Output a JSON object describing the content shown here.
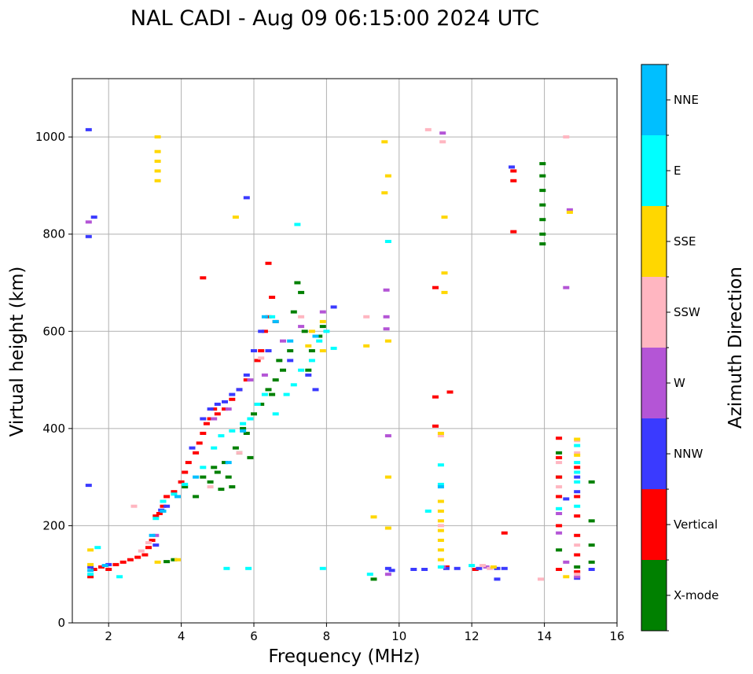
{
  "chart_data": {
    "type": "scatter",
    "title": "NAL CADI - Aug 09 06:15:00 2024 UTC",
    "xlabel": "Frequency (MHz)",
    "ylabel": "Virtual height (km)",
    "xlim": [
      1,
      16
    ],
    "ylim": [
      0,
      1120
    ],
    "xticks": [
      2,
      4,
      6,
      8,
      10,
      12,
      14,
      16
    ],
    "yticks": [
      0,
      200,
      400,
      600,
      800,
      1000
    ],
    "xtick_labels": [
      "2",
      "4",
      "6",
      "8",
      "10",
      "12",
      "14",
      "16"
    ],
    "ytick_labels": [
      "0",
      "200",
      "400",
      "600",
      "800",
      "1000"
    ],
    "grid": true,
    "colorbar": {
      "label": "Azimuth Direction",
      "categories": [
        "X-mode",
        "Vertical",
        "NNW",
        "W",
        "SSW",
        "SSE",
        "E",
        "NNE"
      ],
      "colors": [
        "#008000",
        "#ff0000",
        "#3a3aff",
        "#b455d6",
        "#ffb6c1",
        "#ffd700",
        "#00ffff",
        "#00bfff"
      ]
    },
    "series": [
      {
        "name": "X-mode",
        "points": [
          [
            3.6,
            126
          ],
          [
            3.8,
            130
          ],
          [
            4.1,
            280
          ],
          [
            4.4,
            260
          ],
          [
            4.6,
            300
          ],
          [
            4.8,
            290
          ],
          [
            4.9,
            320
          ],
          [
            5.0,
            310
          ],
          [
            5.1,
            275
          ],
          [
            5.2,
            330
          ],
          [
            5.3,
            300
          ],
          [
            5.4,
            280
          ],
          [
            5.6,
            350
          ],
          [
            5.8,
            390
          ],
          [
            5.9,
            340
          ],
          [
            6.0,
            430
          ],
          [
            6.2,
            450
          ],
          [
            6.4,
            480
          ],
          [
            6.6,
            500
          ],
          [
            6.8,
            520
          ],
          [
            7.0,
            560
          ],
          [
            7.1,
            640
          ],
          [
            7.2,
            700
          ],
          [
            7.3,
            680
          ],
          [
            7.4,
            600
          ],
          [
            7.5,
            520
          ],
          [
            7.6,
            560
          ],
          [
            7.8,
            590
          ],
          [
            7.9,
            610
          ],
          [
            6.7,
            540
          ],
          [
            6.5,
            470
          ],
          [
            5.7,
            400
          ],
          [
            5.5,
            360
          ],
          [
            9.3,
            90
          ],
          [
            13.95,
            780
          ],
          [
            13.95,
            800
          ],
          [
            13.95,
            830
          ],
          [
            13.95,
            860
          ],
          [
            13.95,
            890
          ],
          [
            13.95,
            920
          ],
          [
            13.95,
            945
          ],
          [
            15.3,
            290
          ],
          [
            15.3,
            210
          ],
          [
            15.3,
            160
          ],
          [
            15.3,
            125
          ],
          [
            14.4,
            350
          ],
          [
            14.4,
            300
          ],
          [
            14.4,
            150
          ],
          [
            14.9,
            115
          ]
        ]
      },
      {
        "name": "Vertical",
        "points": [
          [
            1.5,
            95
          ],
          [
            1.6,
            110
          ],
          [
            1.8,
            115
          ],
          [
            2.0,
            110
          ],
          [
            2.2,
            120
          ],
          [
            2.4,
            125
          ],
          [
            2.6,
            130
          ],
          [
            2.8,
            135
          ],
          [
            3.0,
            140
          ],
          [
            3.1,
            155
          ],
          [
            3.2,
            170
          ],
          [
            3.3,
            220
          ],
          [
            3.4,
            225
          ],
          [
            3.5,
            240
          ],
          [
            3.6,
            260
          ],
          [
            3.8,
            270
          ],
          [
            4.0,
            290
          ],
          [
            4.1,
            310
          ],
          [
            4.2,
            330
          ],
          [
            4.4,
            350
          ],
          [
            4.5,
            370
          ],
          [
            4.6,
            390
          ],
          [
            4.7,
            410
          ],
          [
            4.8,
            420
          ],
          [
            4.9,
            440
          ],
          [
            5.0,
            430
          ],
          [
            5.2,
            440
          ],
          [
            5.4,
            460
          ],
          [
            5.6,
            480
          ],
          [
            5.8,
            500
          ],
          [
            6.1,
            540
          ],
          [
            6.2,
            560
          ],
          [
            6.3,
            600
          ],
          [
            6.4,
            630
          ],
          [
            6.4,
            740
          ],
          [
            6.6,
            620
          ],
          [
            6.5,
            670
          ],
          [
            4.6,
            710
          ],
          [
            11.0,
            690
          ],
          [
            11.0,
            465
          ],
          [
            11.0,
            405
          ],
          [
            11.4,
            475
          ],
          [
            11.3,
            115
          ],
          [
            12.1,
            110
          ],
          [
            12.9,
            185
          ],
          [
            13.15,
            805
          ],
          [
            13.15,
            910
          ],
          [
            13.15,
            930
          ],
          [
            14.4,
            380
          ],
          [
            14.4,
            340
          ],
          [
            14.4,
            300
          ],
          [
            14.4,
            260
          ],
          [
            14.4,
            200
          ],
          [
            14.4,
            110
          ],
          [
            14.9,
            260
          ],
          [
            14.9,
            220
          ],
          [
            14.9,
            180
          ],
          [
            14.9,
            140
          ],
          [
            14.9,
            105
          ],
          [
            14.9,
            320
          ]
        ]
      },
      {
        "name": "NNW",
        "points": [
          [
            1.45,
            1015
          ],
          [
            1.45,
            795
          ],
          [
            1.45,
            283
          ],
          [
            1.6,
            835
          ],
          [
            1.5,
            115
          ],
          [
            2.0,
            120
          ],
          [
            3.3,
            160
          ],
          [
            3.45,
            232
          ],
          [
            3.6,
            240
          ],
          [
            4.3,
            360
          ],
          [
            4.6,
            420
          ],
          [
            4.8,
            440
          ],
          [
            5.0,
            450
          ],
          [
            5.2,
            455
          ],
          [
            5.4,
            470
          ],
          [
            5.6,
            480
          ],
          [
            5.8,
            510
          ],
          [
            6.0,
            560
          ],
          [
            6.2,
            600
          ],
          [
            6.4,
            560
          ],
          [
            7.0,
            540
          ],
          [
            7.5,
            510
          ],
          [
            7.7,
            480
          ],
          [
            8.2,
            650
          ],
          [
            5.8,
            875
          ],
          [
            9.7,
            112
          ],
          [
            9.8,
            108
          ],
          [
            10.4,
            110
          ],
          [
            10.7,
            110
          ],
          [
            11.3,
            112
          ],
          [
            11.6,
            112
          ],
          [
            12.2,
            112
          ],
          [
            12.7,
            112
          ],
          [
            12.9,
            112
          ],
          [
            12.7,
            90
          ],
          [
            13.1,
            938
          ],
          [
            14.6,
            255
          ],
          [
            14.9,
            270
          ],
          [
            14.9,
            300
          ],
          [
            14.9,
            92
          ],
          [
            15.3,
            110
          ]
        ]
      },
      {
        "name": "W",
        "points": [
          [
            1.45,
            825
          ],
          [
            3.3,
            180
          ],
          [
            4.9,
            420
          ],
          [
            5.3,
            440
          ],
          [
            5.9,
            500
          ],
          [
            6.3,
            510
          ],
          [
            6.8,
            580
          ],
          [
            7.3,
            610
          ],
          [
            7.9,
            640
          ],
          [
            9.65,
            685
          ],
          [
            9.65,
            630
          ],
          [
            9.65,
            605
          ],
          [
            9.7,
            385
          ],
          [
            9.7,
            100
          ],
          [
            11.2,
            1008
          ],
          [
            11.2,
            115
          ],
          [
            12.4,
            115
          ],
          [
            14.4,
            225
          ],
          [
            14.4,
            185
          ],
          [
            14.6,
            125
          ],
          [
            14.6,
            690
          ],
          [
            14.7,
            850
          ],
          [
            14.9,
            95
          ]
        ]
      },
      {
        "name": "SSW",
        "points": [
          [
            2.7,
            240
          ],
          [
            2.9,
            148
          ],
          [
            3.1,
            165
          ],
          [
            4.8,
            280
          ],
          [
            5.6,
            350
          ],
          [
            6.2,
            545
          ],
          [
            7.3,
            630
          ],
          [
            9.1,
            630
          ],
          [
            10.8,
            1015
          ],
          [
            11.2,
            990
          ],
          [
            11.15,
            385
          ],
          [
            11.15,
            200
          ],
          [
            12.3,
            118
          ],
          [
            12.5,
            112
          ],
          [
            13.9,
            90
          ],
          [
            14.4,
            280
          ],
          [
            14.4,
            330
          ],
          [
            14.6,
            1000
          ],
          [
            14.9,
            375
          ],
          [
            14.9,
            350
          ],
          [
            14.9,
            160
          ],
          [
            14.9,
            100
          ]
        ]
      },
      {
        "name": "SSE",
        "points": [
          [
            1.5,
            150
          ],
          [
            1.5,
            120
          ],
          [
            3.35,
            1000
          ],
          [
            3.35,
            970
          ],
          [
            3.35,
            950
          ],
          [
            3.35,
            930
          ],
          [
            3.35,
            910
          ],
          [
            3.35,
            125
          ],
          [
            3.9,
            130
          ],
          [
            5.5,
            835
          ],
          [
            7.5,
            570
          ],
          [
            7.6,
            600
          ],
          [
            7.9,
            620
          ],
          [
            7.9,
            560
          ],
          [
            9.1,
            570
          ],
          [
            9.3,
            218
          ],
          [
            9.6,
            990
          ],
          [
            9.6,
            885
          ],
          [
            9.7,
            920
          ],
          [
            9.7,
            580
          ],
          [
            9.7,
            300
          ],
          [
            9.7,
            195
          ],
          [
            11.15,
            390
          ],
          [
            11.15,
            250
          ],
          [
            11.15,
            230
          ],
          [
            11.15,
            210
          ],
          [
            11.15,
            190
          ],
          [
            11.15,
            170
          ],
          [
            11.15,
            150
          ],
          [
            11.15,
            130
          ],
          [
            11.25,
            835
          ],
          [
            11.25,
            720
          ],
          [
            11.25,
            680
          ],
          [
            12.6,
            115
          ],
          [
            14.6,
            95
          ],
          [
            14.7,
            845
          ],
          [
            14.9,
            378
          ],
          [
            14.9,
            345
          ]
        ]
      },
      {
        "name": "E",
        "points": [
          [
            1.5,
            100
          ],
          [
            1.7,
            155
          ],
          [
            2.3,
            95
          ],
          [
            3.3,
            215
          ],
          [
            3.5,
            250
          ],
          [
            3.8,
            265
          ],
          [
            4.1,
            285
          ],
          [
            4.6,
            320
          ],
          [
            4.9,
            360
          ],
          [
            5.1,
            385
          ],
          [
            5.4,
            395
          ],
          [
            5.7,
            410
          ],
          [
            5.9,
            420
          ],
          [
            6.1,
            450
          ],
          [
            6.3,
            470
          ],
          [
            6.6,
            430
          ],
          [
            6.5,
            630
          ],
          [
            6.9,
            470
          ],
          [
            7.1,
            490
          ],
          [
            7.3,
            520
          ],
          [
            7.6,
            540
          ],
          [
            7.8,
            580
          ],
          [
            8.0,
            600
          ],
          [
            8.2,
            565
          ],
          [
            7.2,
            820
          ],
          [
            5.25,
            112
          ],
          [
            5.85,
            112
          ],
          [
            7.9,
            112
          ],
          [
            9.2,
            100
          ],
          [
            9.7,
            785
          ],
          [
            10.8,
            230
          ],
          [
            11.15,
            325
          ],
          [
            11.15,
            285
          ],
          [
            11.15,
            115
          ],
          [
            12.0,
            118
          ],
          [
            14.9,
            365
          ],
          [
            14.9,
            330
          ],
          [
            14.9,
            310
          ],
          [
            14.9,
            290
          ],
          [
            14.9,
            240
          ],
          [
            14.4,
            235
          ]
        ]
      },
      {
        "name": "NNE",
        "points": [
          [
            1.5,
            108
          ],
          [
            1.9,
            118
          ],
          [
            3.2,
            180
          ],
          [
            3.5,
            230
          ],
          [
            3.9,
            260
          ],
          [
            4.4,
            300
          ],
          [
            5.3,
            330
          ],
          [
            5.7,
            395
          ],
          [
            6.3,
            630
          ],
          [
            6.6,
            620
          ],
          [
            7.0,
            580
          ],
          [
            7.7,
            590
          ],
          [
            11.15,
            280
          ]
        ]
      }
    ]
  }
}
